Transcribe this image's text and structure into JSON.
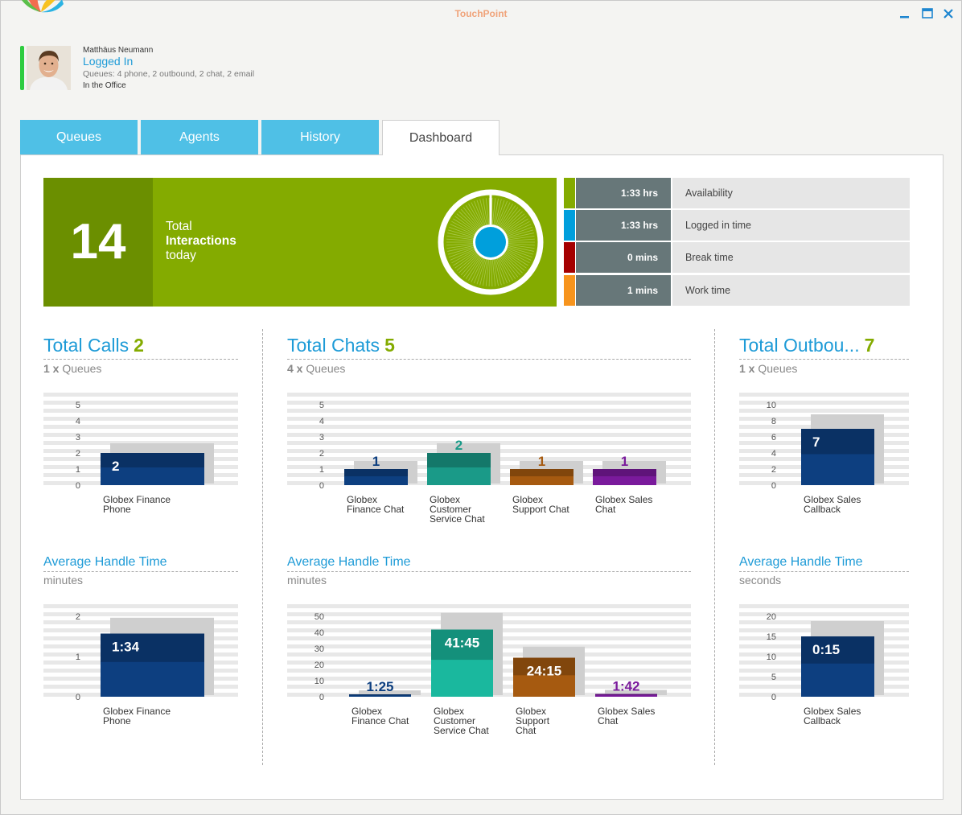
{
  "window": {
    "title": "TouchPoint"
  },
  "agent": {
    "name": "Matthäus Neumann",
    "state": "Logged In",
    "queues": "Queues: 4 phone, 2 outbound, 2 chat, 2 email",
    "location": "In the Office",
    "status_color": "#2ecc40"
  },
  "tabs": [
    {
      "label": "Queues",
      "active": false
    },
    {
      "label": "Agents",
      "active": false
    },
    {
      "label": "History",
      "active": false
    },
    {
      "label": "Dashboard",
      "active": true
    }
  ],
  "summary": {
    "total": "14",
    "line1": "Total",
    "line2": "Interactions",
    "line3": "today"
  },
  "stats": [
    {
      "value": "1:33 hrs",
      "label": "Availability",
      "color": "#84ab00"
    },
    {
      "value": "1:33 hrs",
      "label": "Logged in time",
      "color": "#009fdc"
    },
    {
      "value": "0 mins",
      "label": "Break time",
      "color": "#a50000"
    },
    {
      "value": "1 mins",
      "label": "Work time",
      "color": "#f7941d"
    }
  ],
  "sections": {
    "calls": {
      "name": "Total Calls",
      "count": "2",
      "sub_count": "1 x",
      "sub_label": "Queues",
      "aht_title": "Average Handle Time",
      "aht_unit": "minutes"
    },
    "chats": {
      "name": "Total Chats",
      "count": "5",
      "sub_count": "4 x",
      "sub_label": "Queues",
      "aht_title": "Average Handle Time",
      "aht_unit": "minutes"
    },
    "outbound": {
      "name": "Total Outbou...",
      "count": "7",
      "sub_count": "1 x",
      "sub_label": "Queues",
      "aht_title": "Average Handle Time",
      "aht_unit": "seconds"
    }
  },
  "chart_data": [
    {
      "id": "calls_count",
      "type": "bar",
      "categories": [
        "Globex Finance\nPhone"
      ],
      "values": [
        2
      ],
      "value_labels": [
        "2"
      ],
      "ylim": [
        0,
        5
      ],
      "yticks": [
        0,
        1,
        2,
        3,
        4,
        5
      ],
      "colors": [
        "#0d3f80"
      ],
      "labels_inside": true
    },
    {
      "id": "chats_count",
      "type": "bar",
      "categories": [
        "Globex\nFinance Chat",
        "Globex\nCustomer\nService Chat",
        "Globex\nSupport Chat",
        "Globex Sales\nChat"
      ],
      "values": [
        1,
        2,
        1,
        1
      ],
      "value_labels": [
        "1",
        "2",
        "1",
        "1"
      ],
      "ylim": [
        0,
        5
      ],
      "yticks": [
        0,
        1,
        2,
        3,
        4,
        5
      ],
      "colors": [
        "#0d3f80",
        "#1a9a88",
        "#a65a10",
        "#7a1a9c"
      ],
      "labels_inside": false
    },
    {
      "id": "outbound_count",
      "type": "bar",
      "categories": [
        "Globex Sales\nCallback"
      ],
      "values": [
        7
      ],
      "value_labels": [
        "7"
      ],
      "ylim": [
        0,
        10
      ],
      "yticks": [
        0,
        2,
        4,
        6,
        8,
        10
      ],
      "colors": [
        "#0d3f80"
      ],
      "labels_inside": true
    },
    {
      "id": "calls_aht",
      "type": "bar",
      "categories": [
        "Globex Finance\nPhone"
      ],
      "values": [
        1.57
      ],
      "value_labels": [
        "1:34"
      ],
      "ylim": [
        0,
        2
      ],
      "yticks": [
        0,
        1,
        2
      ],
      "colors": [
        "#0d3f80"
      ],
      "labels_inside": true
    },
    {
      "id": "chats_aht",
      "type": "bar",
      "categories": [
        "Globex\nFinance Chat",
        "Globex\nCustomer\nService Chat",
        "Globex\nSupport\nChat",
        "Globex Sales\nChat"
      ],
      "values": [
        1.42,
        41.75,
        24.25,
        1.7
      ],
      "value_labels": [
        "1:25",
        "41:45",
        "24:15",
        "1:42"
      ],
      "ylim": [
        0,
        50
      ],
      "yticks": [
        0,
        10,
        20,
        30,
        40,
        50
      ],
      "colors": [
        "#0d3f80",
        "#1ab89e",
        "#a65a10",
        "#7a1a9c"
      ],
      "labels_inside": "auto"
    },
    {
      "id": "outbound_aht",
      "type": "bar",
      "categories": [
        "Globex Sales\nCallback"
      ],
      "values": [
        15
      ],
      "value_labels": [
        "0:15"
      ],
      "ylim": [
        0,
        20
      ],
      "yticks": [
        0,
        5,
        10,
        15,
        20
      ],
      "colors": [
        "#0d3f80"
      ],
      "labels_inside": true
    }
  ]
}
